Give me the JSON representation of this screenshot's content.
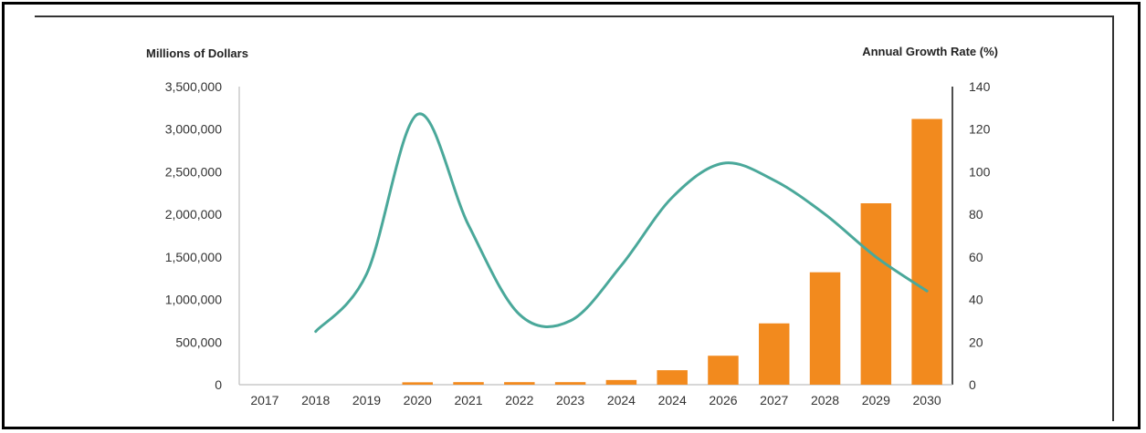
{
  "chart_data": {
    "type": "bar",
    "title": "",
    "xlabel": "",
    "ylabel": "Millions of Dollars",
    "y2label": "Annual Growth Rate (%)",
    "categories": [
      "2017",
      "2018",
      "2019",
      "2020",
      "2021",
      "2022",
      "2023",
      "2024",
      "2024",
      "2026",
      "2027",
      "2028",
      "2029",
      "2030"
    ],
    "ylim": [
      0,
      3500000
    ],
    "y2lim": [
      0,
      140
    ],
    "yticks": [
      "0",
      "500,000",
      "1,000,000",
      "1,500,000",
      "2,000,000",
      "2,500,000",
      "3,000,000",
      "3,500,000"
    ],
    "y2ticks": [
      "0",
      "20",
      "40",
      "60",
      "80",
      "100",
      "120",
      "140"
    ],
    "grid": false,
    "series": [
      {
        "type": "bar",
        "axis": "left",
        "color": "#f28a1e",
        "values": [
          0,
          0,
          0,
          28000,
          30000,
          30000,
          30000,
          55000,
          170000,
          340000,
          720000,
          1320000,
          2130000,
          3120000
        ]
      },
      {
        "type": "line",
        "axis": "right",
        "smooth": true,
        "color": "#4aa89a",
        "values": [
          null,
          25,
          52,
          127,
          75,
          33,
          30,
          56,
          88,
          104,
          96,
          80,
          60,
          44
        ]
      }
    ]
  }
}
